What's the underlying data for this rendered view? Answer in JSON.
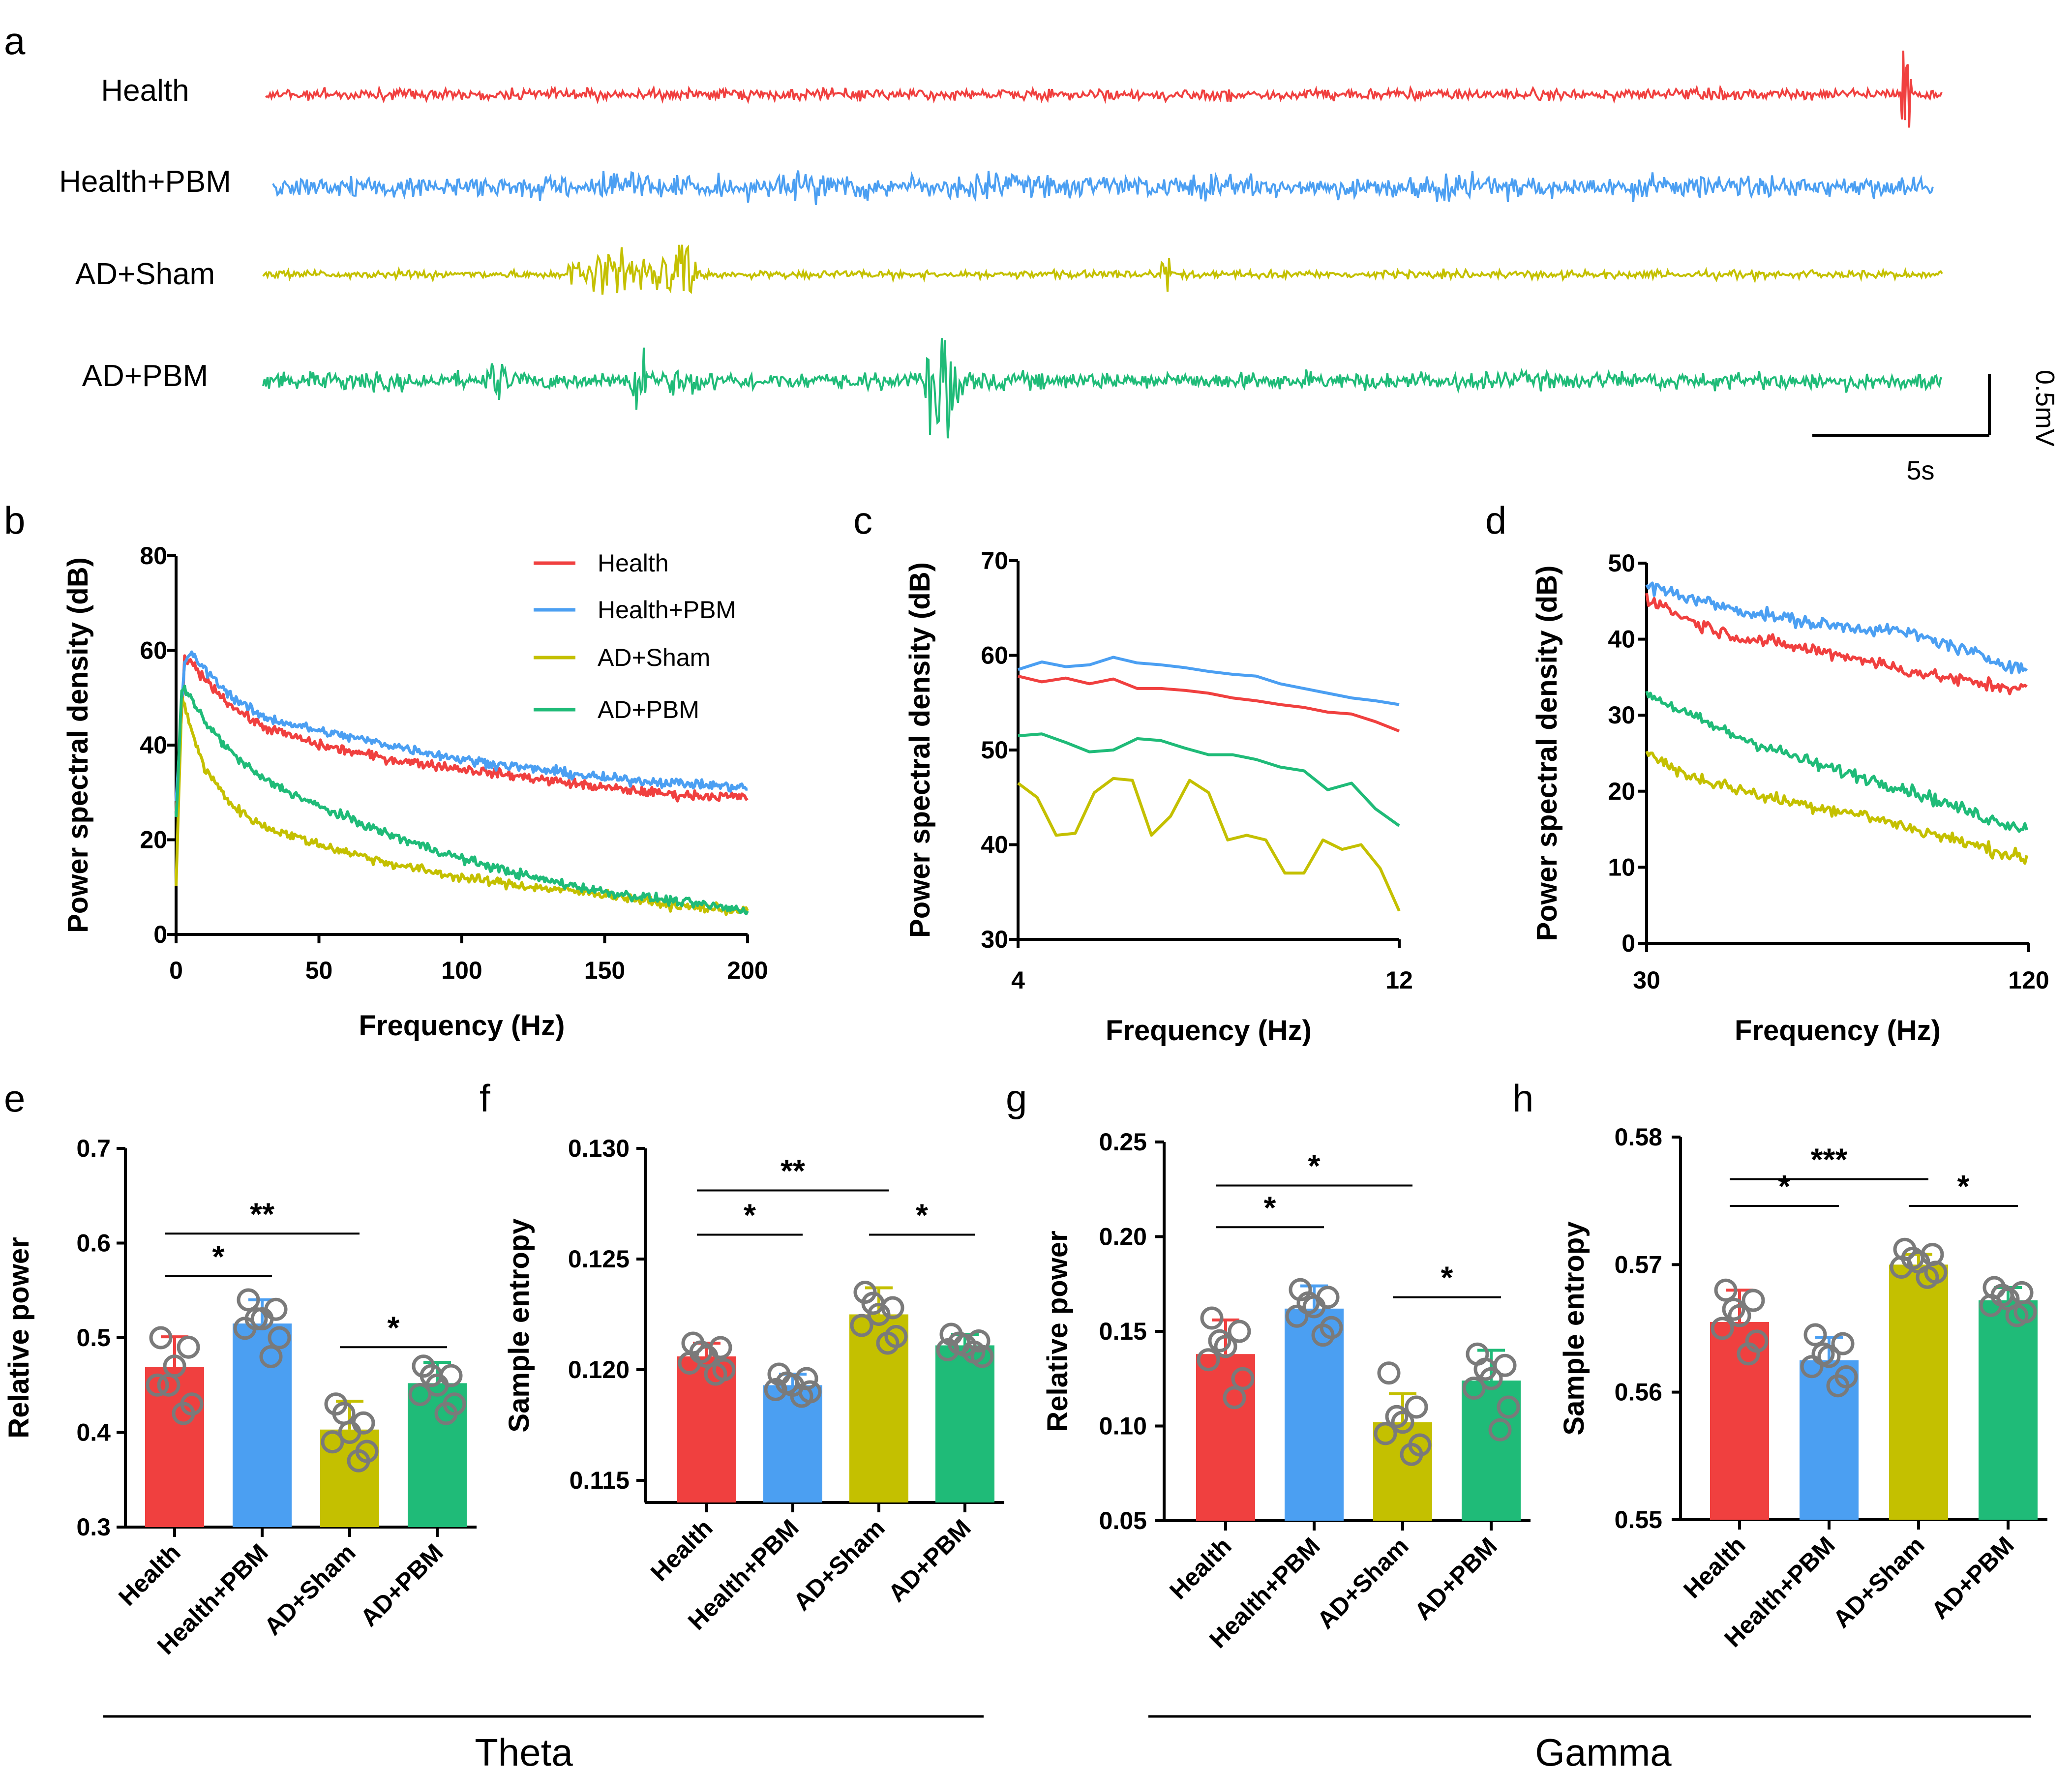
{
  "colors": {
    "health": "#f0403f",
    "health_pbm": "#4b9ff2",
    "ad_sham": "#c4c000",
    "ad_pbm": "#1fbb78",
    "marker_edge": "#7a7a7a"
  },
  "panel_labels": [
    "a",
    "b",
    "c",
    "d",
    "e",
    "f",
    "g",
    "h"
  ],
  "panel_a": {
    "traces": [
      "Health",
      "Health+PBM",
      "AD+Sham",
      "AD+PBM"
    ],
    "scalebar_y": "0.5mV",
    "scalebar_x": "5s"
  },
  "group_labels": {
    "theta": "Theta",
    "gamma": "Gamma"
  },
  "chart_data": [
    {
      "id": "b",
      "type": "line",
      "xlabel": "Frequency (Hz)",
      "ylabel": "Power spectral density (dB)",
      "xlim": [
        0,
        200
      ],
      "ylim": [
        0,
        80
      ],
      "xticks": [
        "0",
        "50",
        "100",
        "150",
        "200"
      ],
      "yticks": [
        "0",
        "20",
        "40",
        "60",
        "80"
      ],
      "legend": [
        "Health",
        "Health+PBM",
        "AD+Sham",
        "AD+PBM"
      ],
      "series": [
        {
          "name": "Health",
          "x": [
            0,
            3,
            6,
            10,
            20,
            30,
            50,
            75,
            100,
            125,
            150,
            175,
            200
          ],
          "y": [
            25,
            58,
            57,
            54,
            48,
            44,
            40,
            37,
            35,
            33,
            31,
            29.5,
            29
          ]
        },
        {
          "name": "Health+PBM",
          "x": [
            0,
            3,
            6,
            10,
            20,
            30,
            50,
            75,
            100,
            125,
            150,
            175,
            200
          ],
          "y": [
            28,
            58,
            59,
            56,
            50,
            46,
            43,
            40,
            37,
            35,
            33,
            32,
            31
          ]
        },
        {
          "name": "AD+Sham",
          "x": [
            0,
            2,
            5,
            10,
            20,
            30,
            50,
            75,
            100,
            125,
            150,
            175,
            200
          ],
          "y": [
            10,
            50,
            44,
            35,
            27,
            23,
            19,
            15,
            12,
            10,
            8.5,
            6,
            5
          ]
        },
        {
          "name": "AD+PBM",
          "x": [
            0,
            2,
            5,
            10,
            20,
            30,
            50,
            75,
            100,
            125,
            150,
            175,
            200
          ],
          "y": [
            24,
            52,
            50,
            45,
            38,
            33,
            27,
            21,
            16,
            12,
            9,
            7,
            5
          ]
        }
      ]
    },
    {
      "id": "c",
      "type": "line",
      "xlabel": "Frequency (Hz)",
      "ylabel": "Power spectral density (dB)",
      "xlim": [
        4,
        12
      ],
      "ylim": [
        30,
        70
      ],
      "xticks": [
        "4",
        "12"
      ],
      "yticks": [
        "30",
        "40",
        "50",
        "60",
        "70"
      ],
      "series": [
        {
          "name": "Health",
          "x": [
            4,
            4.5,
            5,
            5.5,
            6,
            6.5,
            7,
            7.5,
            8,
            8.5,
            9,
            9.5,
            10,
            10.5,
            11,
            11.5,
            12
          ],
          "y": [
            57.8,
            57.2,
            57.6,
            57.0,
            57.5,
            56.5,
            56.5,
            56.3,
            56.0,
            55.5,
            55.2,
            54.8,
            54.5,
            54.0,
            53.8,
            53.0,
            52.0
          ]
        },
        {
          "name": "Health+PBM",
          "x": [
            4,
            4.5,
            5,
            5.5,
            6,
            6.5,
            7,
            7.5,
            8,
            8.5,
            9,
            9.5,
            10,
            10.5,
            11,
            11.5,
            12
          ],
          "y": [
            58.5,
            59.3,
            58.8,
            59.0,
            59.8,
            59.2,
            59.0,
            58.7,
            58.3,
            58.0,
            57.8,
            57.0,
            56.5,
            56.0,
            55.5,
            55.2,
            54.8
          ]
        },
        {
          "name": "AD+Sham",
          "x": [
            4,
            4.4,
            4.8,
            5.2,
            5.6,
            6,
            6.4,
            6.8,
            7.2,
            7.6,
            8,
            8.4,
            8.8,
            9.2,
            9.6,
            10,
            10.4,
            10.8,
            11.2,
            11.6,
            12
          ],
          "y": [
            46.5,
            45.0,
            41.0,
            41.2,
            45.5,
            47.0,
            46.8,
            41.0,
            43.0,
            46.8,
            45.5,
            40.5,
            41.0,
            40.5,
            37.0,
            37.0,
            40.5,
            39.5,
            40.0,
            37.5,
            33.0
          ]
        },
        {
          "name": "AD+PBM",
          "x": [
            4,
            4.5,
            5,
            5.5,
            6,
            6.5,
            7,
            7.5,
            8,
            8.5,
            9,
            9.5,
            10,
            10.5,
            11,
            11.5,
            12
          ],
          "y": [
            51.5,
            51.7,
            50.8,
            49.8,
            50.0,
            51.2,
            51.0,
            50.2,
            49.5,
            49.5,
            49.0,
            48.2,
            47.8,
            45.8,
            46.5,
            43.8,
            42.0
          ]
        }
      ]
    },
    {
      "id": "d",
      "type": "line",
      "xlabel": "Frequency (Hz)",
      "ylabel": "Power spectral density (dB)",
      "xlim": [
        30,
        120
      ],
      "ylim": [
        0,
        50
      ],
      "xticks": [
        "30",
        "120"
      ],
      "yticks": [
        "0",
        "10",
        "20",
        "30",
        "40",
        "50"
      ],
      "series": [
        {
          "name": "Health",
          "x": [
            30,
            40,
            50,
            60,
            70,
            80,
            90,
            100,
            110,
            120
          ],
          "y": [
            45.5,
            42.5,
            40.5,
            39.5,
            38.5,
            37.5,
            36.0,
            35.0,
            34.0,
            33.5
          ]
        },
        {
          "name": "Health+PBM",
          "x": [
            30,
            40,
            50,
            60,
            70,
            80,
            90,
            100,
            110,
            120
          ],
          "y": [
            47.0,
            45.5,
            44.0,
            43.0,
            42.0,
            41.5,
            41.0,
            39.5,
            37.5,
            36.0
          ]
        },
        {
          "name": "AD+Sham",
          "x": [
            30,
            40,
            50,
            60,
            70,
            80,
            90,
            100,
            110,
            120
          ],
          "y": [
            25.0,
            22.0,
            20.5,
            19.0,
            18.0,
            17.0,
            15.5,
            14.0,
            12.5,
            11.0
          ]
        },
        {
          "name": "AD+PBM",
          "x": [
            30,
            40,
            50,
            60,
            70,
            80,
            90,
            100,
            110,
            120
          ],
          "y": [
            33.0,
            30.0,
            27.5,
            25.5,
            23.5,
            22.0,
            20.5,
            18.5,
            16.5,
            15.0
          ]
        }
      ]
    },
    {
      "id": "e",
      "type": "bar",
      "group": "Theta",
      "ylabel": "Relative power",
      "ylim": [
        0.3,
        0.7
      ],
      "yticks": [
        "0.3",
        "0.4",
        "0.5",
        "0.6",
        "0.7"
      ],
      "categories": [
        "Health",
        "Health+PBM",
        "AD+Sham",
        "AD+PBM"
      ],
      "values": [
        0.469,
        0.515,
        0.403,
        0.452
      ],
      "errors": [
        0.032,
        0.025,
        0.03,
        0.022
      ],
      "points": [
        [
          0.5,
          0.49,
          0.47,
          0.45,
          0.43,
          0.45,
          0.42
        ],
        [
          0.54,
          0.53,
          0.52,
          0.51,
          0.5,
          0.52,
          0.48
        ],
        [
          0.43,
          0.41,
          0.4,
          0.39,
          0.38,
          0.42,
          0.37
        ],
        [
          0.47,
          0.46,
          0.45,
          0.44,
          0.43,
          0.46,
          0.42
        ]
      ],
      "sig": [
        {
          "a": 0,
          "b": 1,
          "label": "*",
          "y": 0.565
        },
        {
          "a": 0,
          "b": 2,
          "label": "**",
          "y": 0.61
        },
        {
          "a": 2,
          "b": 3,
          "label": "*",
          "y": 0.49
        }
      ]
    },
    {
      "id": "f",
      "type": "bar",
      "group": "Theta",
      "ylabel": "Sample entropy",
      "ylim": [
        0.114,
        0.13
      ],
      "yticks": [
        "0.115",
        "0.120",
        "0.125",
        "0.130"
      ],
      "categories": [
        "Health",
        "Health+PBM",
        "AD+Sham",
        "AD+PBM"
      ],
      "values": [
        0.1206,
        0.1193,
        0.1225,
        0.1211
      ],
      "errors": [
        0.0006,
        0.0005,
        0.0012,
        0.0005
      ],
      "points": [
        [
          0.1212,
          0.121,
          0.1206,
          0.1203,
          0.12,
          0.1208,
          0.1198
        ],
        [
          0.1198,
          0.1196,
          0.1193,
          0.1191,
          0.119,
          0.1194,
          0.1188
        ],
        [
          0.1235,
          0.1228,
          0.1225,
          0.122,
          0.1215,
          0.123,
          0.1212
        ],
        [
          0.1216,
          0.1213,
          0.1211,
          0.1209,
          0.1206,
          0.1212,
          0.1208
        ]
      ],
      "sig": [
        {
          "a": 0,
          "b": 1,
          "label": "*",
          "y": 0.1261
        },
        {
          "a": 0,
          "b": 2,
          "label": "**",
          "y": 0.1281
        },
        {
          "a": 2,
          "b": 3,
          "label": "*",
          "y": 0.1261
        }
      ]
    },
    {
      "id": "g",
      "type": "bar",
      "group": "Gamma",
      "ylabel": "Relative power",
      "ylim": [
        0.05,
        0.25
      ],
      "yticks": [
        "0.05",
        "0.10",
        "0.15",
        "0.20",
        "0.25"
      ],
      "categories": [
        "Health",
        "Health+PBM",
        "AD+Sham",
        "AD+PBM"
      ],
      "values": [
        0.138,
        0.162,
        0.102,
        0.124
      ],
      "errors": [
        0.018,
        0.012,
        0.015,
        0.016
      ],
      "points": [
        [
          0.157,
          0.15,
          0.142,
          0.135,
          0.125,
          0.145,
          0.115
        ],
        [
          0.172,
          0.168,
          0.163,
          0.158,
          0.152,
          0.165,
          0.148
        ],
        [
          0.128,
          0.11,
          0.102,
          0.096,
          0.09,
          0.105,
          0.085
        ],
        [
          0.138,
          0.132,
          0.125,
          0.12,
          0.11,
          0.13,
          0.098
        ]
      ],
      "sig": [
        {
          "a": 0,
          "b": 1,
          "label": "*",
          "y": 0.205
        },
        {
          "a": 0,
          "b": 2,
          "label": "*",
          "y": 0.227
        },
        {
          "a": 2,
          "b": 3,
          "label": "*",
          "y": 0.168
        }
      ]
    },
    {
      "id": "h",
      "type": "bar",
      "group": "Gamma",
      "ylabel": "Sample entropy",
      "ylim": [
        0.55,
        0.58
      ],
      "yticks": [
        "0.55",
        "0.56",
        "0.57",
        "0.58"
      ],
      "categories": [
        "Health",
        "Health+PBM",
        "AD+Sham",
        "AD+PBM"
      ],
      "values": [
        0.5655,
        0.5625,
        0.57,
        0.5672
      ],
      "errors": [
        0.0025,
        0.0018,
        0.0008,
        0.001
      ],
      "points": [
        [
          0.568,
          0.5672,
          0.566,
          0.565,
          0.564,
          0.5665,
          0.563
        ],
        [
          0.5645,
          0.5638,
          0.5628,
          0.562,
          0.5612,
          0.563,
          0.5605
        ],
        [
          0.5712,
          0.5708,
          0.5702,
          0.5698,
          0.5694,
          0.5705,
          0.569
        ],
        [
          0.5682,
          0.5678,
          0.5673,
          0.5668,
          0.5663,
          0.5676,
          0.566
        ]
      ],
      "sig": [
        {
          "a": 0,
          "b": 1,
          "label": "*",
          "y": 0.5746
        },
        {
          "a": 0,
          "b": 2,
          "label": "***",
          "y": 0.5767
        },
        {
          "a": 2,
          "b": 3,
          "label": "*",
          "y": 0.5746
        }
      ]
    }
  ]
}
